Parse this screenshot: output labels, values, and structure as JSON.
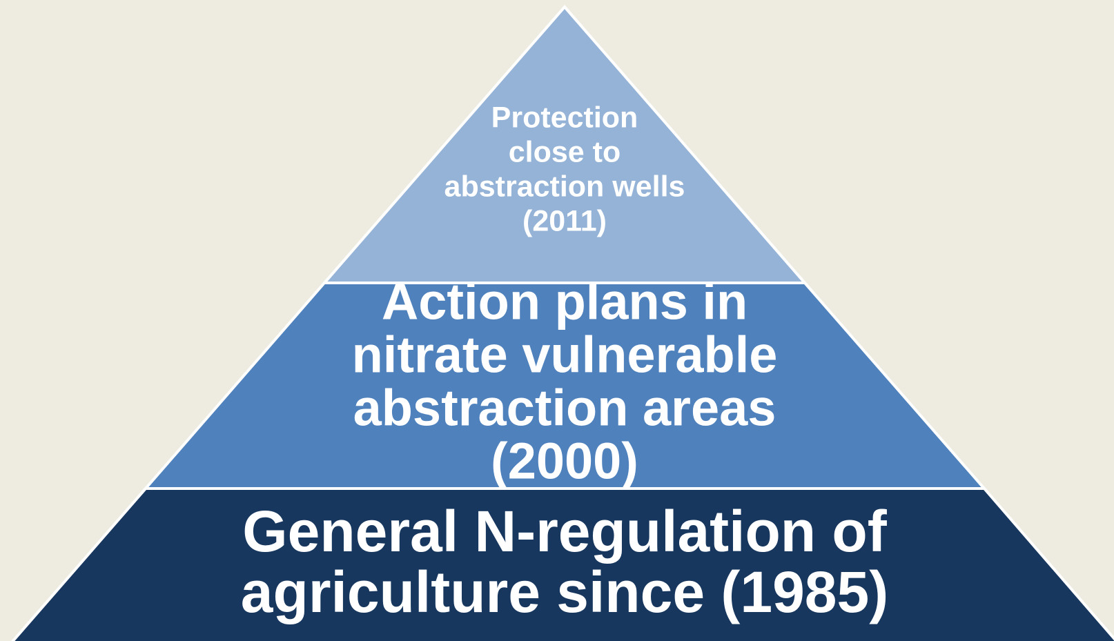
{
  "pyramid": {
    "levels": [
      {
        "lines": [
          "Protection",
          "close to",
          "abstraction wells",
          "(2011)"
        ]
      },
      {
        "lines": [
          "Action plans in",
          "nitrate vulnerable",
          "abstraction areas",
          "(2000)"
        ]
      },
      {
        "lines": [
          "General N-regulation of",
          "agriculture since (1985)"
        ]
      }
    ]
  }
}
